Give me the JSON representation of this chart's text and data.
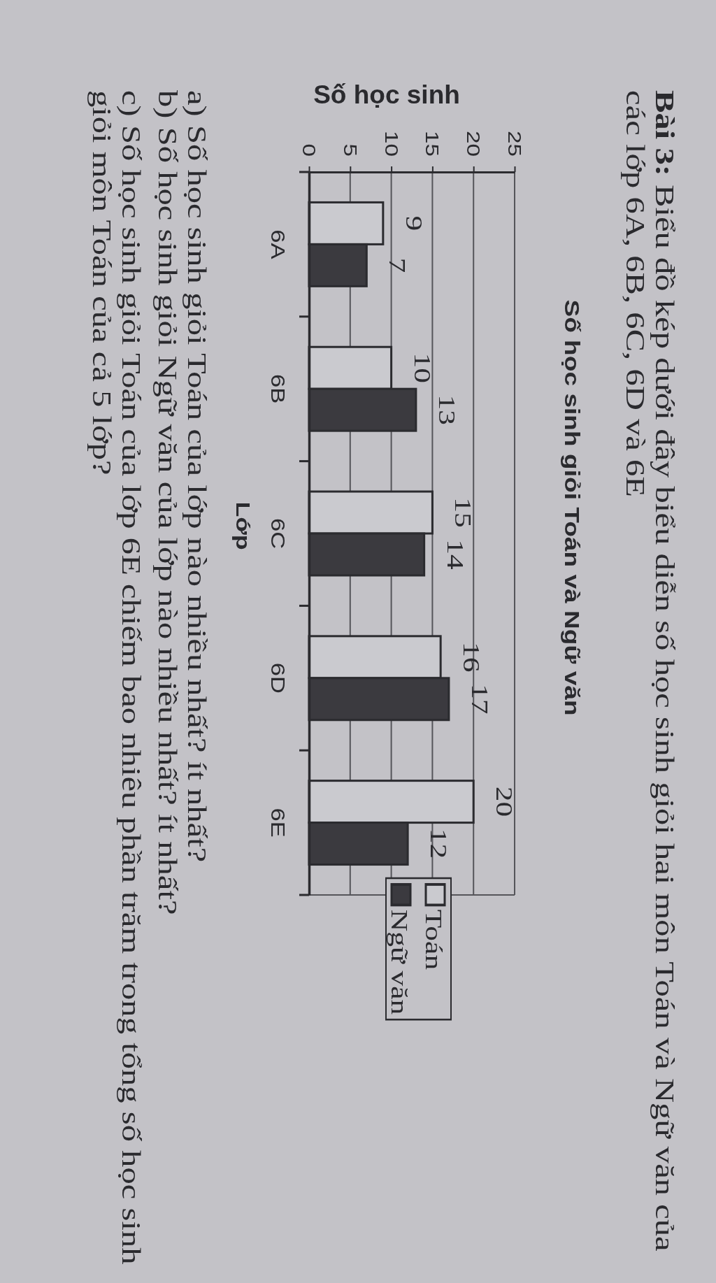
{
  "chart_data": {
    "type": "bar",
    "orientation": "horizontal",
    "title": "Số học sinh giỏi Toán và Ngữ văn",
    "xlabel": "Số học sinh",
    "ylabel": "Lớp",
    "categories": [
      "6A",
      "6B",
      "6C",
      "6D",
      "6E"
    ],
    "series": [
      {
        "name": "Toán",
        "color": "#cacacf",
        "values": [
          9,
          10,
          15,
          16,
          20
        ]
      },
      {
        "name": "Ngữ văn",
        "color": "#3b3a3f",
        "values": [
          7,
          13,
          14,
          17,
          12
        ]
      }
    ],
    "xlim": [
      0,
      25
    ],
    "xticks": [
      0,
      5,
      10,
      15,
      20,
      25
    ],
    "grid": "x",
    "legend": "bottom",
    "data_labels": true,
    "annotations": [
      "Bài 3: Biểu đồ kép dưới đây biểu diễn số học sinh giỏi hai môn Toán và Ngữ văn của các lớp 6A, 6B, 6C, 6D và 6E",
      "a) Số học sinh giỏi Toán của lớp nào nhiều nhất? ít nhất?",
      "b) Số học sinh giỏi Ngữ văn của lớp nào nhiều nhất? ít nhất?",
      "c) Số học sinh giỏi Toán của lớp 6E chiếm bao nhiêu phần trăm trong tổng số học sinh giỏi môn Toán của cả 5 lớp?"
    ]
  }
}
